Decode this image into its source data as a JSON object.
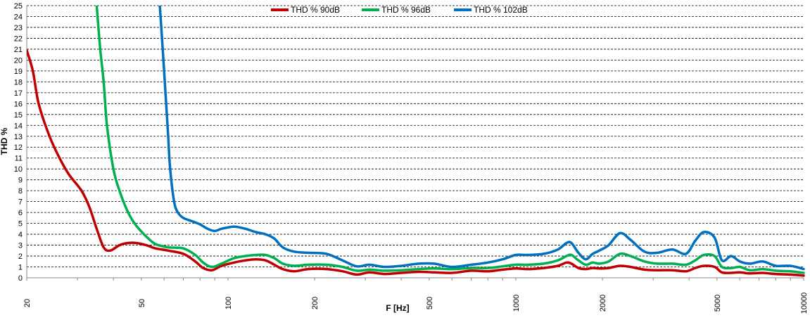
{
  "chart_data": {
    "type": "line",
    "xscale": "log",
    "xlabel": "F [Hz]",
    "ylabel": "THD %",
    "xlim": [
      20,
      10000
    ],
    "ylim": [
      0,
      25
    ],
    "grid": "horizontal dashed",
    "legend_position": "top-center",
    "x_ticks": [
      20,
      50,
      100,
      200,
      500,
      1000,
      2000,
      5000,
      10000
    ],
    "x_tick_labels": [
      "20",
      "50",
      "100",
      "200",
      "500",
      "1000",
      "2000",
      "5000",
      "10000"
    ],
    "y_ticks": [
      0,
      1,
      2,
      3,
      4,
      5,
      6,
      7,
      8,
      9,
      10,
      11,
      12,
      13,
      14,
      15,
      16,
      17,
      18,
      19,
      20,
      21,
      22,
      23,
      24,
      25
    ],
    "y_tick_labels": [
      "0",
      "1",
      "2",
      "3",
      "4",
      "5",
      "6",
      "7",
      "8",
      "9",
      "10",
      "11",
      "12",
      "13",
      "14",
      "15",
      "16",
      "17",
      "18",
      "19",
      "20",
      "21",
      "22",
      "23",
      "24",
      "25"
    ],
    "series": [
      {
        "name": "THD % 90dB",
        "color": "#c00000",
        "points": [
          [
            20,
            20.9
          ],
          [
            21,
            19
          ],
          [
            22,
            16
          ],
          [
            24,
            13
          ],
          [
            26,
            11
          ],
          [
            28,
            9.5
          ],
          [
            31,
            8
          ],
          [
            33,
            6.5
          ],
          [
            35,
            4.5
          ],
          [
            37,
            2.8
          ],
          [
            39,
            2.5
          ],
          [
            42,
            3
          ],
          [
            45,
            3.2
          ],
          [
            48,
            3.2
          ],
          [
            52,
            3
          ],
          [
            56,
            2.7
          ],
          [
            62,
            2.5
          ],
          [
            70,
            2.2
          ],
          [
            77,
            1.5
          ],
          [
            82,
            0.9
          ],
          [
            88,
            0.7
          ],
          [
            95,
            1.1
          ],
          [
            105,
            1.4
          ],
          [
            115,
            1.6
          ],
          [
            125,
            1.7
          ],
          [
            135,
            1.6
          ],
          [
            145,
            1.2
          ],
          [
            155,
            0.8
          ],
          [
            170,
            0.6
          ],
          [
            190,
            0.8
          ],
          [
            220,
            0.8
          ],
          [
            250,
            0.6
          ],
          [
            280,
            0.3
          ],
          [
            310,
            0.5
          ],
          [
            350,
            0.35
          ],
          [
            400,
            0.45
          ],
          [
            460,
            0.55
          ],
          [
            520,
            0.5
          ],
          [
            600,
            0.45
          ],
          [
            700,
            0.65
          ],
          [
            800,
            0.6
          ],
          [
            900,
            0.75
          ],
          [
            1000,
            0.85
          ],
          [
            1100,
            0.8
          ],
          [
            1250,
            0.9
          ],
          [
            1400,
            1.1
          ],
          [
            1500,
            1.4
          ],
          [
            1560,
            1.3
          ],
          [
            1650,
            0.9
          ],
          [
            1750,
            0.8
          ],
          [
            1850,
            0.9
          ],
          [
            1950,
            0.85
          ],
          [
            2100,
            0.9
          ],
          [
            2300,
            1.1
          ],
          [
            2500,
            1
          ],
          [
            2800,
            0.75
          ],
          [
            3100,
            0.7
          ],
          [
            3500,
            0.7
          ],
          [
            3900,
            0.6
          ],
          [
            4200,
            0.9
          ],
          [
            4500,
            1.1
          ],
          [
            4900,
            1
          ],
          [
            5200,
            0.5
          ],
          [
            5600,
            0.45
          ],
          [
            6000,
            0.5
          ],
          [
            6500,
            0.4
          ],
          [
            7200,
            0.45
          ],
          [
            8000,
            0.35
          ],
          [
            9000,
            0.3
          ],
          [
            10000,
            0.2
          ]
        ]
      },
      {
        "name": "THD % 96dB",
        "color": "#00b050",
        "points": [
          [
            35,
            25
          ],
          [
            36,
            21
          ],
          [
            37,
            18
          ],
          [
            38,
            14
          ],
          [
            40,
            10
          ],
          [
            42,
            8
          ],
          [
            45,
            6
          ],
          [
            48,
            4.8
          ],
          [
            52,
            3.8
          ],
          [
            56,
            3.1
          ],
          [
            62,
            2.8
          ],
          [
            70,
            2.7
          ],
          [
            77,
            2.1
          ],
          [
            82,
            1.4
          ],
          [
            88,
            1
          ],
          [
            95,
            1.3
          ],
          [
            105,
            1.8
          ],
          [
            115,
            2
          ],
          [
            125,
            2.1
          ],
          [
            135,
            2.1
          ],
          [
            145,
            1.8
          ],
          [
            155,
            1.3
          ],
          [
            170,
            1.1
          ],
          [
            190,
            1.2
          ],
          [
            220,
            1.2
          ],
          [
            250,
            1
          ],
          [
            280,
            0.65
          ],
          [
            310,
            0.75
          ],
          [
            350,
            0.65
          ],
          [
            400,
            0.7
          ],
          [
            460,
            0.8
          ],
          [
            520,
            0.85
          ],
          [
            600,
            0.8
          ],
          [
            700,
            0.9
          ],
          [
            800,
            0.9
          ],
          [
            900,
            1.05
          ],
          [
            1000,
            1.2
          ],
          [
            1100,
            1.2
          ],
          [
            1250,
            1.3
          ],
          [
            1400,
            1.6
          ],
          [
            1500,
            2
          ],
          [
            1560,
            2.1
          ],
          [
            1650,
            1.6
          ],
          [
            1750,
            1.2
          ],
          [
            1850,
            1.4
          ],
          [
            1950,
            1.3
          ],
          [
            2100,
            1.5
          ],
          [
            2300,
            2.2
          ],
          [
            2500,
            2
          ],
          [
            2800,
            1.5
          ],
          [
            3100,
            1.3
          ],
          [
            3500,
            1.3
          ],
          [
            3900,
            1.2
          ],
          [
            4200,
            1.6
          ],
          [
            4500,
            2.1
          ],
          [
            4900,
            2
          ],
          [
            5200,
            1
          ],
          [
            5600,
            0.9
          ],
          [
            6000,
            1
          ],
          [
            6500,
            0.7
          ],
          [
            7200,
            0.8
          ],
          [
            8000,
            0.65
          ],
          [
            9000,
            0.6
          ],
          [
            10000,
            0.45
          ]
        ]
      },
      {
        "name": "THD % 102dB",
        "color": "#0070c0",
        "points": [
          [
            58,
            25
          ],
          [
            59,
            22
          ],
          [
            60,
            19
          ],
          [
            61,
            16
          ],
          [
            62,
            13
          ],
          [
            63,
            10
          ],
          [
            65,
            7
          ],
          [
            67,
            6
          ],
          [
            70,
            5.5
          ],
          [
            75,
            5.2
          ],
          [
            80,
            4.9
          ],
          [
            85,
            4.5
          ],
          [
            90,
            4.3
          ],
          [
            95,
            4.5
          ],
          [
            105,
            4.7
          ],
          [
            115,
            4.5
          ],
          [
            125,
            4.2
          ],
          [
            135,
            4
          ],
          [
            145,
            3.6
          ],
          [
            155,
            2.8
          ],
          [
            170,
            2.4
          ],
          [
            190,
            2.3
          ],
          [
            220,
            2.2
          ],
          [
            250,
            1.6
          ],
          [
            280,
            1.05
          ],
          [
            310,
            1.2
          ],
          [
            350,
            1
          ],
          [
            400,
            1.1
          ],
          [
            460,
            1.3
          ],
          [
            520,
            1.3
          ],
          [
            600,
            1
          ],
          [
            700,
            1.2
          ],
          [
            800,
            1.4
          ],
          [
            900,
            1.7
          ],
          [
            1000,
            2.1
          ],
          [
            1100,
            2.1
          ],
          [
            1250,
            2.2
          ],
          [
            1400,
            2.6
          ],
          [
            1500,
            3.2
          ],
          [
            1560,
            3.2
          ],
          [
            1650,
            2.3
          ],
          [
            1750,
            1.7
          ],
          [
            1850,
            2.2
          ],
          [
            1950,
            2.5
          ],
          [
            2100,
            3
          ],
          [
            2300,
            4.1
          ],
          [
            2500,
            3.5
          ],
          [
            2800,
            2.4
          ],
          [
            3100,
            2.3
          ],
          [
            3500,
            2.6
          ],
          [
            3900,
            2.2
          ],
          [
            4200,
            3.4
          ],
          [
            4500,
            4.2
          ],
          [
            4900,
            3.7
          ],
          [
            5200,
            1.6
          ],
          [
            5600,
            2
          ],
          [
            6000,
            1.5
          ],
          [
            6500,
            1.3
          ],
          [
            7200,
            1.5
          ],
          [
            8000,
            1.1
          ],
          [
            9000,
            1.1
          ],
          [
            10000,
            0.8
          ]
        ]
      }
    ]
  }
}
